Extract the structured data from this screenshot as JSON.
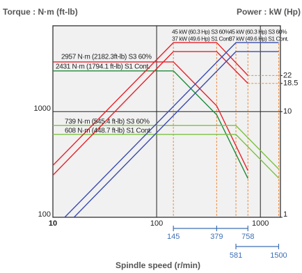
{
  "chart_data": {
    "type": "line",
    "y_title": "Torque : N·m (ft-lb)",
    "y2_title": "Power : kW (Hp)",
    "x_title": "Spindle speed (r/min)",
    "log_scale": true,
    "grid": true,
    "xlim": [
      10,
      1560
    ],
    "xticks": [
      10,
      100,
      1000
    ],
    "ylim": [
      100,
      6500
    ],
    "yticks": [
      100,
      1000
    ],
    "y2lim": [
      1,
      65
    ],
    "y2ticks": [
      1,
      10,
      18.5,
      22
    ],
    "series": [
      {
        "color": "#e8202a",
        "x": [
          10,
          145,
          379,
          758
        ],
        "values": [
          2957,
          2957,
          1134,
          277
        ]
      },
      {
        "color": "#1f8a3a",
        "x": [
          10,
          145,
          379,
          758
        ],
        "values": [
          2431,
          2431,
          932,
          233
        ]
      },
      {
        "color": "#7ac143",
        "x": [
          10,
          581,
          1500
        ],
        "values": [
          739,
          739,
          286
        ]
      },
      {
        "color": "#7ac143",
        "x": [
          10,
          581,
          1500
        ],
        "values": [
          608,
          608,
          235
        ]
      },
      {
        "color": "#e8202a",
        "axis": "y2",
        "x": [
          10,
          145,
          379,
          758
        ],
        "values": [
          3.1,
          45,
          45,
          22
        ]
      },
      {
        "color": "#e8202a",
        "axis": "y2",
        "x": [
          10,
          145,
          379,
          758
        ],
        "values": [
          2.5,
          37,
          37,
          18.5
        ]
      },
      {
        "color": "#3a4bb0",
        "axis": "y2",
        "x": [
          13,
          581,
          1500
        ],
        "values": [
          1,
          45,
          45
        ]
      },
      {
        "color": "#3a4bb0",
        "axis": "y2",
        "x": [
          16,
          581,
          1500
        ],
        "values": [
          1,
          37,
          37
        ]
      }
    ],
    "speed_markers_low_gear": [
      145,
      379,
      758
    ],
    "speed_markers_high_gear": [
      581,
      1500
    ],
    "annotations": [
      "2957 N·m (2182.3ft-lb) S3 60%",
      "2431 N·m (1794.1 ft-lb) S1 Cont.",
      "739 N·m (545.4 ft-lb) S3 60%",
      "608 N·m (448.7 ft-lb) S1 Cont.",
      "45 kW (60.3 Hp) S3 60%",
      "37 kW (49.6 Hp) S1 Cont.",
      "45 kW (60.3 Hp) S3 60%",
      "37 kW (49.6 Hp) S1 Cont."
    ]
  }
}
